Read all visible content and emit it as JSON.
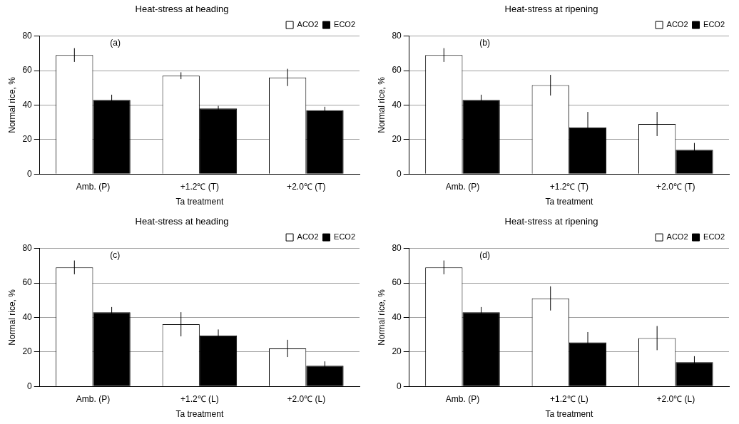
{
  "chart_data": [
    {
      "type": "bar",
      "title": "Heat-stress at heading",
      "annotation": "(a)",
      "x_label": "Ta treatment",
      "y_label": "Normal rice, %",
      "categories": [
        "Amb. (P)",
        "+1.2℃ (T)",
        "+2.0℃ (T)"
      ],
      "series": [
        {
          "name": "ACO2",
          "color": "#ffffff",
          "values": [
            69,
            57,
            56
          ],
          "errors": [
            4,
            2,
            5
          ]
        },
        {
          "name": "ECO2",
          "color": "#000000",
          "values": [
            43,
            38,
            37
          ],
          "errors": [
            3,
            1.5,
            2
          ]
        }
      ],
      "ylim": [
        0,
        80
      ],
      "yticks": [
        0,
        20,
        40,
        60,
        80
      ],
      "grid": true,
      "legend": "upper right"
    },
    {
      "type": "bar",
      "title": "Heat-stress at ripening",
      "annotation": "(b)",
      "x_label": "Ta treatment",
      "y_label": "Normal rice, %",
      "categories": [
        "Amb. (P)",
        "+1.2℃ (T)",
        "+2.0℃ (T)"
      ],
      "series": [
        {
          "name": "ACO2",
          "color": "#ffffff",
          "values": [
            69,
            51.5,
            29
          ],
          "errors": [
            4,
            6,
            7
          ]
        },
        {
          "name": "ECO2",
          "color": "#000000",
          "values": [
            43,
            27,
            14
          ],
          "errors": [
            3,
            9,
            4
          ]
        }
      ],
      "ylim": [
        0,
        80
      ],
      "yticks": [
        0,
        20,
        40,
        60,
        80
      ],
      "grid": true,
      "legend": "upper right"
    },
    {
      "type": "bar",
      "title": "Heat-stress at heading",
      "annotation": "(c)",
      "x_label": "Ta treatment",
      "y_label": "Normal rice, %",
      "categories": [
        "Amb. (P)",
        "+1.2℃ (L)",
        "+2.0℃ (L)"
      ],
      "series": [
        {
          "name": "ACO2",
          "color": "#ffffff",
          "values": [
            69,
            36,
            22
          ],
          "errors": [
            4,
            7,
            5
          ]
        },
        {
          "name": "ECO2",
          "color": "#000000",
          "values": [
            43,
            29.5,
            12
          ],
          "errors": [
            3,
            3.5,
            2.5
          ]
        }
      ],
      "ylim": [
        0,
        80
      ],
      "yticks": [
        0,
        20,
        40,
        60,
        80
      ],
      "grid": true,
      "legend": "upper right"
    },
    {
      "type": "bar",
      "title": "Heat-stress at ripening",
      "annotation": "(d)",
      "x_label": "Ta treatment",
      "y_label": "Normal rice, %",
      "categories": [
        "Amb. (P)",
        "+1.2℃ (L)",
        "+2.0℃ (L)"
      ],
      "series": [
        {
          "name": "ACO2",
          "color": "#ffffff",
          "values": [
            69,
            51,
            28
          ],
          "errors": [
            4,
            7,
            7
          ]
        },
        {
          "name": "ECO2",
          "color": "#000000",
          "values": [
            43,
            25.5,
            14
          ],
          "errors": [
            3,
            6,
            3.5
          ]
        }
      ],
      "ylim": [
        0,
        80
      ],
      "yticks": [
        0,
        20,
        40,
        60,
        80
      ],
      "grid": true,
      "legend": "upper right"
    }
  ]
}
